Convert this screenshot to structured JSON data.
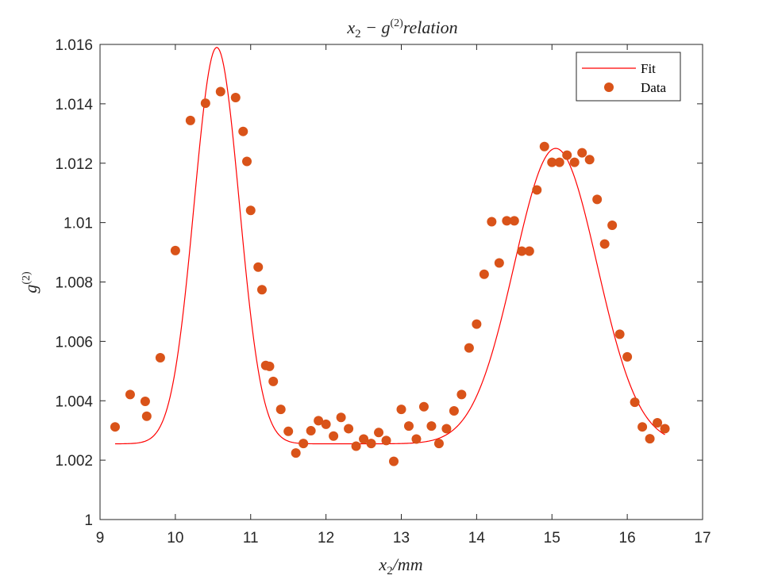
{
  "chart_data": {
    "type": "scatter",
    "title": "x₂ − g⁽²⁾relation",
    "title_parts": {
      "a": "x",
      "a_sub": "2",
      "b": " − g",
      "b_sup": "(2)",
      "c": "relation"
    },
    "xlabel": "x₂/mm",
    "xlabel_parts": {
      "a": "x",
      "a_sub": "2",
      "b": "/mm"
    },
    "ylabel": "g⁽²⁾",
    "ylabel_parts": {
      "a": "g",
      "a_sup": "(2)"
    },
    "xlim": [
      9,
      17
    ],
    "ylim": [
      1.0,
      1.016
    ],
    "xticks": [
      9,
      10,
      11,
      12,
      13,
      14,
      15,
      16,
      17
    ],
    "xtick_labels": [
      "9",
      "10",
      "11",
      "12",
      "13",
      "14",
      "15",
      "16",
      "17"
    ],
    "yticks": [
      1.0,
      1.002,
      1.004,
      1.006,
      1.008,
      1.01,
      1.012,
      1.014,
      1.016
    ],
    "ytick_labels": [
      "1",
      "1.002",
      "1.004",
      "1.006",
      "1.008",
      "1.01",
      "1.012",
      "1.014",
      "1.016"
    ],
    "grid": false,
    "legend": {
      "position": "top-right",
      "entries": [
        "Fit",
        "Data"
      ]
    },
    "colors": {
      "fit": "#ff0000",
      "data": "#d95319",
      "axis": "#262626"
    },
    "series": [
      {
        "name": "Fit",
        "kind": "line",
        "fit_model": {
          "baseline": 1.00255,
          "peaks": [
            {
              "amplitude": 0.01335,
              "center": 10.55,
              "sigma": 0.3
            },
            {
              "amplitude": 0.00995,
              "center": 15.05,
              "sigma": 0.55
            }
          ],
          "x_range": [
            9.2,
            16.5
          ]
        }
      },
      {
        "name": "Data",
        "kind": "scatter",
        "points": [
          [
            9.2,
            1.00312
          ],
          [
            9.4,
            1.00421
          ],
          [
            9.6,
            1.00398
          ],
          [
            9.62,
            1.00348
          ],
          [
            9.8,
            1.00545
          ],
          [
            10.0,
            1.00906
          ],
          [
            10.2,
            1.01344
          ],
          [
            10.4,
            1.01402
          ],
          [
            10.6,
            1.01441
          ],
          [
            10.8,
            1.01421
          ],
          [
            10.9,
            1.01307
          ],
          [
            10.95,
            1.01206
          ],
          [
            11.0,
            1.01041
          ],
          [
            11.1,
            1.0085
          ],
          [
            11.15,
            1.00774
          ],
          [
            11.2,
            1.00519
          ],
          [
            11.25,
            1.00516
          ],
          [
            11.3,
            1.00465
          ],
          [
            11.4,
            1.00371
          ],
          [
            11.5,
            1.00297
          ],
          [
            11.6,
            1.00224
          ],
          [
            11.7,
            1.00256
          ],
          [
            11.8,
            1.00299
          ],
          [
            11.9,
            1.00333
          ],
          [
            12.0,
            1.00321
          ],
          [
            12.1,
            1.00281
          ],
          [
            12.2,
            1.00344
          ],
          [
            12.3,
            1.00306
          ],
          [
            12.4,
            1.00247
          ],
          [
            12.5,
            1.00271
          ],
          [
            12.6,
            1.00256
          ],
          [
            12.7,
            1.00293
          ],
          [
            12.8,
            1.00266
          ],
          [
            12.9,
            1.00196
          ],
          [
            13.0,
            1.00371
          ],
          [
            13.1,
            1.00315
          ],
          [
            13.2,
            1.00271
          ],
          [
            13.3,
            1.0038
          ],
          [
            13.4,
            1.00315
          ],
          [
            13.5,
            1.00256
          ],
          [
            13.6,
            1.00306
          ],
          [
            13.7,
            1.00366
          ],
          [
            13.8,
            1.00421
          ],
          [
            13.9,
            1.00578
          ],
          [
            14.0,
            1.00658
          ],
          [
            14.1,
            1.00826
          ],
          [
            14.2,
            1.01003
          ],
          [
            14.3,
            1.00864
          ],
          [
            14.4,
            1.01006
          ],
          [
            14.5,
            1.01006
          ],
          [
            14.6,
            1.00904
          ],
          [
            14.7,
            1.00904
          ],
          [
            14.8,
            1.0111
          ],
          [
            14.9,
            1.01256
          ],
          [
            15.0,
            1.01203
          ],
          [
            15.1,
            1.01203
          ],
          [
            15.2,
            1.01227
          ],
          [
            15.3,
            1.01203
          ],
          [
            15.4,
            1.01235
          ],
          [
            15.5,
            1.01212
          ],
          [
            15.6,
            1.01078
          ],
          [
            15.7,
            1.00928
          ],
          [
            15.8,
            1.00991
          ],
          [
            15.9,
            1.00624
          ],
          [
            16.0,
            1.00548
          ],
          [
            16.1,
            1.00395
          ],
          [
            16.2,
            1.00312
          ],
          [
            16.3,
            1.00272
          ],
          [
            16.4,
            1.00326
          ],
          [
            16.5,
            1.00306
          ]
        ]
      }
    ]
  }
}
